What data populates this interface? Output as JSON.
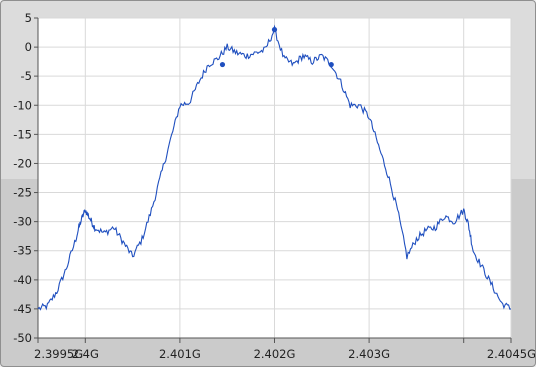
{
  "chart_data": {
    "type": "line",
    "title": "",
    "xlabel": "",
    "ylabel": "",
    "xlim": [
      2399.5,
      2404.5
    ],
    "ylim": [
      -50,
      5
    ],
    "grid": true,
    "x_ticks": [
      2399.5,
      2400,
      2401,
      2402,
      2403,
      2404.5
    ],
    "x_tick_labels": [
      "2.3995G",
      "2.4G",
      "2.401G",
      "2.402G",
      "2.403G",
      "2.4045G"
    ],
    "extra_x_tick_marks": [
      2404
    ],
    "y_ticks": [
      5,
      0,
      -5,
      -10,
      -15,
      -20,
      -25,
      -30,
      -35,
      -40,
      -45,
      -50
    ],
    "y_tick_labels": [
      "5",
      "0",
      "-5",
      "-10",
      "-15",
      "-20",
      "-25",
      "-30",
      "-35",
      "-40",
      "-45",
      "-50"
    ],
    "series": [
      {
        "color": "#1f4fbf",
        "x": [
          2399.5,
          2399.6,
          2399.7,
          2399.8,
          2399.9,
          2399.95,
          2400.0,
          2400.05,
          2400.1,
          2400.2,
          2400.3,
          2400.4,
          2400.5,
          2400.6,
          2400.7,
          2400.8,
          2400.9,
          2401.0,
          2401.1,
          2401.2,
          2401.3,
          2401.4,
          2401.5,
          2401.6,
          2401.7,
          2401.8,
          2401.9,
          2402.0,
          2402.1,
          2402.2,
          2402.3,
          2402.4,
          2402.5,
          2402.6,
          2402.7,
          2402.8,
          2402.9,
          2403.0,
          2403.1,
          2403.2,
          2403.3,
          2403.4,
          2403.5,
          2403.6,
          2403.7,
          2403.8,
          2403.9,
          2404.0,
          2404.05,
          2404.1,
          2404.2,
          2404.3,
          2404.4,
          2404.5
        ],
        "y": [
          -45,
          -44.5,
          -42,
          -38,
          -33,
          -30,
          -28,
          -29.5,
          -31,
          -32,
          -31,
          -33.5,
          -36,
          -33,
          -28,
          -22,
          -16,
          -10,
          -9.5,
          -6,
          -3,
          -2,
          0,
          -1,
          -1.5,
          -1,
          -0.5,
          3,
          -2,
          -3,
          -1.5,
          -2.5,
          -1.5,
          -3,
          -6,
          -10,
          -10,
          -12,
          -17,
          -22,
          -28,
          -36,
          -33,
          -31.5,
          -31,
          -29,
          -30,
          -28,
          -30.5,
          -35,
          -38,
          -41,
          -44,
          -45
        ]
      }
    ],
    "markers": [
      {
        "x": 2401.45,
        "y": -3
      },
      {
        "x": 2402.0,
        "y": 3
      },
      {
        "x": 2402.6,
        "y": -3
      }
    ]
  }
}
